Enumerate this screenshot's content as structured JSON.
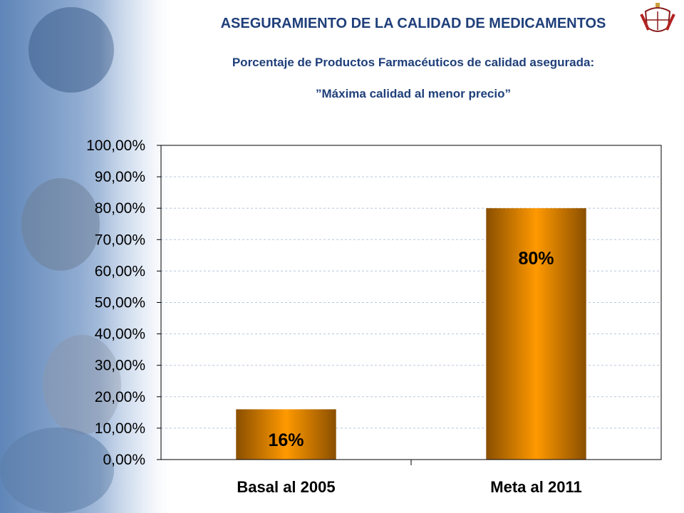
{
  "header": {
    "title": "ASEGURAMIENTO DE LA CALIDAD DE MEDICAMENTOS",
    "subtitle": "Porcentaje de Productos Farmacéuticos de calidad asegurada:",
    "slogan": "”Máxima calidad al menor precio”"
  },
  "colors": {
    "title": "#1f3f7a",
    "bar_center": "#ff9900",
    "bar_edge": "#8a4f00",
    "gridline": "#b8c6e0",
    "background_accent": "#6b8fc0"
  },
  "chart_data": {
    "type": "bar",
    "categories": [
      "Basal al 2005",
      "Meta al 2011"
    ],
    "values": [
      16,
      80
    ],
    "data_labels": [
      "16%",
      "80%"
    ],
    "y_ticks": [
      "0,00%",
      "10,00%",
      "20,00%",
      "30,00%",
      "40,00%",
      "50,00%",
      "60,00%",
      "70,00%",
      "80,00%",
      "90,00%",
      "100,00%"
    ],
    "ylim": [
      0,
      100
    ],
    "grid": true,
    "legend": false
  }
}
